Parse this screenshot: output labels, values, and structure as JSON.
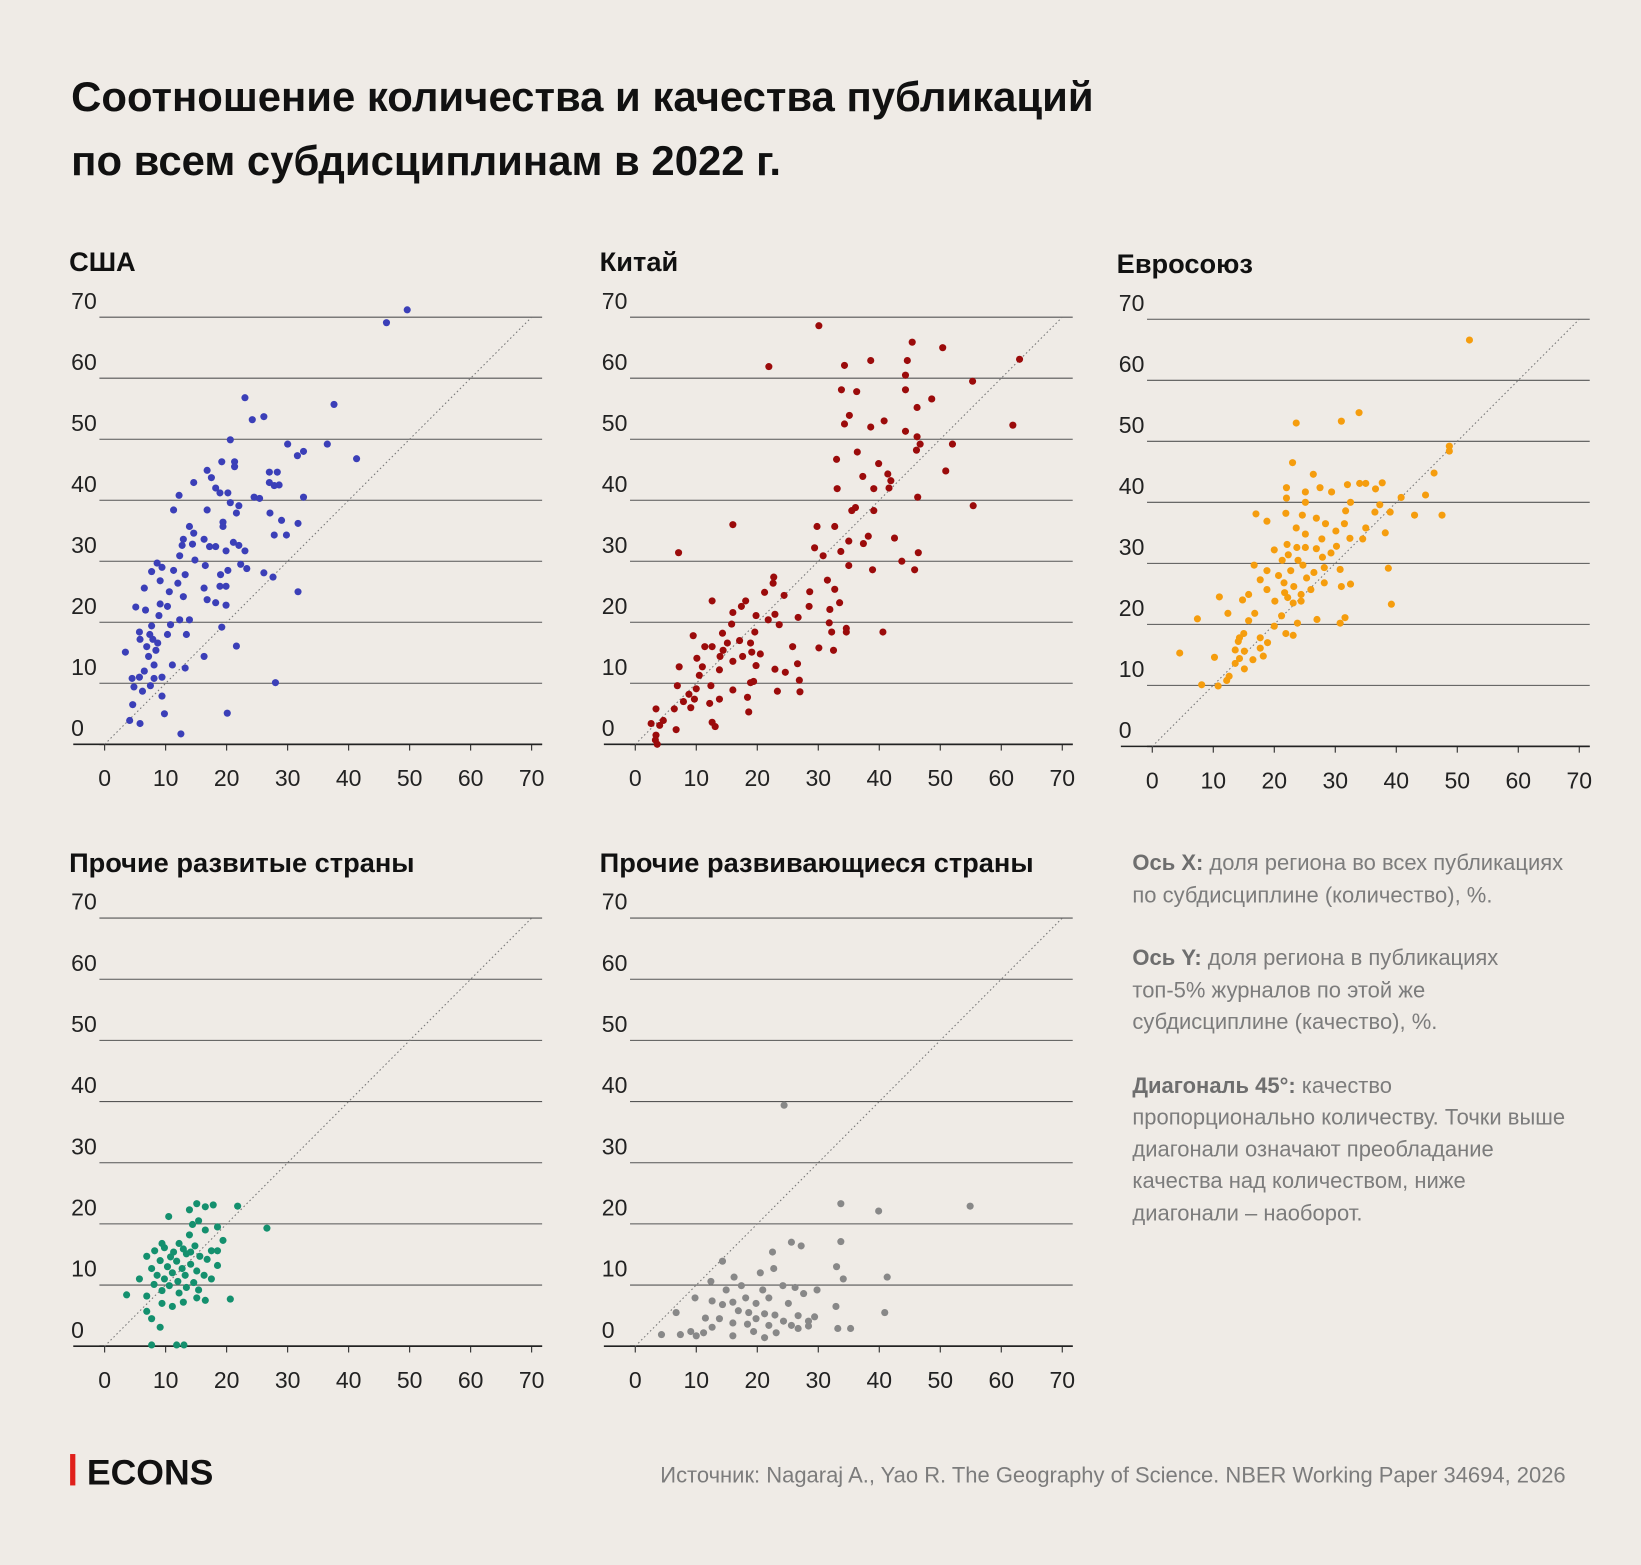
{
  "title": [
    "Соотношение количества и качества публикаций",
    "по всем субдисциплинам в 2022 г."
  ],
  "notes": [
    {
      "label": "Ось X:",
      "text": "доля региона во всех публикациях по субдисциплине (количество), %."
    },
    {
      "label": "Ось Y:",
      "text": "доля региона в публикациях топ-5% журналов по этой же субдисциплине (качество), %."
    },
    {
      "label": "Диагональ 45°:",
      "text": "качество пропорционально количеству. Точки выше диагонали означают преобладание качества над количеством, ниже диагонали – наоборот."
    }
  ],
  "logo": "ECONS",
  "source": "Источник: Nagaraj A., Yao R. The Geography of Science. NBER Working Paper 34694, 2026",
  "chart_data": [
    {
      "type": "scatter",
      "title": "США",
      "color": "#3b3fb8",
      "xlim": [
        0,
        70
      ],
      "ylim": [
        0,
        70
      ],
      "xticks": [
        0,
        10,
        20,
        30,
        40,
        50,
        60,
        70
      ],
      "yticks": [
        0,
        10,
        20,
        30,
        40,
        50,
        60,
        70
      ],
      "x": [
        49.6,
        46.2,
        23,
        37.6,
        26.1,
        24.2,
        20.6,
        30,
        36.5,
        32.6,
        31.6,
        41.3,
        19.2,
        21.3,
        21.3,
        16.8,
        27,
        17.5,
        28.3,
        14.6,
        27,
        28.6,
        27.8,
        18.2,
        12.2,
        18.9,
        20.2,
        24.5,
        32.6,
        25.4,
        20.6,
        22,
        16.8,
        11.3,
        27.1,
        29,
        21.6,
        31.7,
        19.4,
        13.9,
        14.6,
        27.8,
        29.8,
        19.4,
        16.3,
        12.9,
        14.4,
        21.1,
        22,
        12.7,
        17.2,
        18.2,
        19.9,
        12.3,
        23,
        14.8,
        16.5,
        8.6,
        9.4,
        22.3,
        23.3,
        20.2,
        19,
        26.1,
        27.6,
        13.2,
        11.3,
        7.7,
        12,
        9.1,
        16.3,
        18.9,
        19.9,
        31.7,
        6.5,
        10.6,
        12.9,
        16.8,
        18.2,
        19.9,
        9.1,
        10.3,
        5.1,
        6.7,
        8.9,
        12.3,
        13.9,
        10.8,
        7.7,
        19.2,
        5.7,
        7.4,
        10.3,
        13.4,
        5.8,
        7.9,
        8.7,
        6.9,
        8.4,
        16.3,
        3.4,
        7.2,
        21.6,
        8.1,
        11.1,
        13.2,
        6.5,
        5.7,
        9.4,
        4.5,
        8.1,
        28,
        4.8,
        7.5,
        6.2,
        9.4,
        4.6,
        9.8,
        20.1,
        4.1,
        5.8,
        12.5
      ],
      "values": [
        71.2,
        69.1,
        56.8,
        55.7,
        53.7,
        53.2,
        49.9,
        49.2,
        49.2,
        48,
        47.3,
        46.8,
        46.3,
        46.3,
        45.5,
        44.9,
        44.6,
        43.7,
        44.6,
        42.9,
        42.9,
        42.5,
        42.4,
        42,
        40.8,
        41.2,
        41.2,
        40.5,
        40.5,
        40.3,
        39.6,
        39.1,
        38.4,
        38.4,
        37.9,
        36.7,
        37.9,
        36.2,
        36.4,
        35.7,
        34.6,
        34.3,
        34.3,
        35.7,
        33.6,
        33.6,
        32.8,
        33.1,
        32.6,
        32.6,
        32.4,
        32.4,
        31.7,
        30.9,
        31.7,
        30.2,
        29.3,
        29.7,
        29,
        29.5,
        28.8,
        28.5,
        27.8,
        28.1,
        27.4,
        27.8,
        28.5,
        28.3,
        26.4,
        26.8,
        25.6,
        25.9,
        25.9,
        25,
        25.6,
        25,
        24.2,
        23.7,
        23.2,
        22.8,
        23,
        22.6,
        22.5,
        22,
        21.1,
        20.4,
        20.4,
        19.6,
        19.4,
        19.2,
        18.4,
        18,
        18,
        18,
        17.2,
        17.2,
        16.6,
        16,
        15.4,
        14.4,
        15.1,
        14.4,
        16.1,
        13,
        13,
        12.5,
        12,
        11,
        11,
        10.8,
        10.8,
        10.1,
        9.4,
        9.6,
        8.7,
        7.9,
        6.5,
        5,
        5.1,
        3.9,
        3.4,
        1.7
      ]
    },
    {
      "type": "scatter",
      "title": "Китай",
      "color": "#9b0b0b",
      "xlim": [
        0,
        70
      ],
      "ylim": [
        0,
        70
      ],
      "xticks": [
        0,
        10,
        20,
        30,
        40,
        50,
        60,
        70
      ],
      "yticks": [
        0,
        10,
        20,
        30,
        40,
        50,
        60,
        70
      ],
      "x": [
        30.1,
        45.4,
        50.4,
        63,
        21.9,
        38.6,
        34.3,
        44.6,
        44.3,
        55.3,
        33.8,
        36.3,
        44.3,
        48.6,
        46.2,
        35.1,
        40.8,
        61.9,
        38.6,
        44.3,
        34.3,
        46.2,
        46.7,
        52,
        46.1,
        36.4,
        33,
        39.9,
        50.9,
        41.4,
        41.9,
        37.3,
        33.1,
        39.1,
        41.6,
        46.3,
        55.4,
        36.1,
        35.5,
        39.1,
        16,
        29.8,
        32.7,
        38.2,
        42.5,
        35,
        37.4,
        7.1,
        29.4,
        33.7,
        46.4,
        30.8,
        43.7,
        35,
        38.9,
        45.8,
        22.7,
        31.5,
        22.6,
        32.7,
        28.6,
        21.2,
        12.6,
        18.1,
        24.4,
        33.5,
        17.4,
        28.5,
        31.9,
        16,
        22.9,
        19.8,
        26.7,
        21.8,
        15.8,
        31.8,
        23.6,
        34.6,
        32.2,
        34.6,
        40.6,
        19.6,
        14.3,
        9.5,
        17.1,
        18.9,
        11.4,
        12.6,
        15.1,
        25.8,
        14.4,
        13.9,
        30.1,
        32.5,
        19.1,
        10.1,
        17.6,
        20.5,
        16,
        26.6,
        19.8,
        11,
        22.9,
        7.2,
        24.6,
        13.8,
        10.5,
        19.4,
        18.9,
        26.9,
        6.9,
        12.4,
        10,
        16,
        23.3,
        27,
        8.8,
        9.7,
        13.8,
        18.4,
        7.9,
        12.2,
        9.1,
        18.6,
        6.4,
        3.4,
        12.6,
        13.1,
        4.6,
        4,
        2.6,
        6.7,
        3.4,
        3.3,
        3.6
      ],
      "values": [
        68.6,
        65.9,
        65,
        63.1,
        61.9,
        62.9,
        62.1,
        62.9,
        60.5,
        59.5,
        58.1,
        57.8,
        58.1,
        56.6,
        55.2,
        53.9,
        53,
        52.3,
        52,
        51.3,
        52.5,
        50.4,
        49.2,
        49.2,
        48.2,
        47.9,
        46.7,
        46,
        44.8,
        44.3,
        43.2,
        43.9,
        41.9,
        41.9,
        42,
        40.5,
        39.1,
        38.8,
        38.3,
        38.3,
        36,
        35.7,
        35.7,
        34.1,
        33.8,
        33.3,
        32.9,
        31.4,
        32.2,
        31.6,
        31.4,
        30.9,
        30,
        29.3,
        28.6,
        28.6,
        27.4,
        26.9,
        26.4,
        25.4,
        25,
        24.9,
        23.5,
        23.5,
        24.4,
        23.2,
        22.6,
        22.6,
        22.1,
        21.6,
        21.3,
        21.1,
        20.8,
        20.4,
        19.7,
        19.9,
        19.6,
        19,
        18.4,
        18.4,
        18.4,
        18.4,
        18.2,
        17.8,
        17,
        16.6,
        16,
        16,
        16.6,
        16,
        15.4,
        14.4,
        15.8,
        15.4,
        15.1,
        14.1,
        14.4,
        14.8,
        13.6,
        13.2,
        12.9,
        12.7,
        12.3,
        12.7,
        11.8,
        12.2,
        11.3,
        10.3,
        10.1,
        10.5,
        9.6,
        9.6,
        9.1,
        8.9,
        8.7,
        8.6,
        8.2,
        7.4,
        7.4,
        7.7,
        7,
        6.7,
        6,
        5.3,
        5.8,
        5.8,
        3.6,
        2.9,
        3.9,
        3.1,
        3.4,
        2.4,
        1.5,
        0.7,
        0
      ]
    },
    {
      "type": "scatter",
      "title": "Евросоюз",
      "color": "#f59d0e",
      "xlim": [
        0,
        70
      ],
      "ylim": [
        0,
        70
      ],
      "xticks": [
        0,
        10,
        20,
        30,
        40,
        50,
        60,
        70
      ],
      "yticks": [
        0,
        10,
        20,
        30,
        40,
        50,
        60,
        70
      ],
      "x": [
        52,
        48.7,
        48.7,
        33.9,
        31,
        23.6,
        46.2,
        23,
        26.4,
        44.8,
        37.7,
        35,
        32,
        34,
        40.8,
        22,
        27.5,
        29.4,
        25.1,
        36.6,
        22,
        37.3,
        36.5,
        39,
        25.1,
        32.5,
        31.7,
        21.9,
        17,
        43,
        24.6,
        47.5,
        26.9,
        28.4,
        18.8,
        31.5,
        23.6,
        35,
        38.2,
        30.1,
        25.1,
        32.4,
        34.5,
        27.8,
        22.1,
        23.7,
        25.1,
        26.9,
        30.2,
        20,
        22.3,
        29.3,
        27.9,
        23.9,
        21.3,
        24.7,
        16.7,
        38.7,
        28.2,
        30.8,
        18.8,
        22.7,
        26.5,
        20.7,
        25.3,
        17.7,
        21.6,
        28.2,
        32.5,
        23.2,
        31,
        26,
        18.8,
        21.7,
        24.4,
        22.2,
        15.8,
        11,
        20.1,
        39.2,
        24.4,
        23.1,
        14.8,
        12.4,
        16.8,
        21.2,
        7.4,
        27,
        31.6,
        30.8,
        23.8,
        15.8,
        20,
        15,
        21.9,
        23.1,
        14.3,
        17.7,
        14.1,
        18.9,
        17.7,
        13.6,
        4.5,
        15.1,
        18.2,
        10.2,
        14.3,
        16.5,
        13.6,
        15.1,
        12.6,
        12.2,
        8.1,
        10.8
      ],
      "values": [
        66.6,
        49.2,
        48.4,
        54.7,
        53.3,
        53,
        44.8,
        46.5,
        44.6,
        41.2,
        43.2,
        43.1,
        42.9,
        43.1,
        40.8,
        42.4,
        42.4,
        41.7,
        41.7,
        42.2,
        40.7,
        39.6,
        38.4,
        38.4,
        40,
        40,
        38.6,
        38.2,
        38.1,
        37.9,
        37.9,
        37.9,
        37.4,
        36.5,
        36.9,
        36.5,
        35.8,
        35.8,
        35,
        35.3,
        34.8,
        34.1,
        34,
        34,
        33.1,
        32.6,
        32.6,
        32.4,
        32.8,
        32.2,
        31.4,
        31.7,
        31,
        30.5,
        30.5,
        29.7,
        29.7,
        29.2,
        29.3,
        29,
        28.8,
        28.8,
        28.5,
        28,
        27.6,
        27.3,
        26.8,
        26.8,
        26.6,
        26.2,
        26.2,
        25.7,
        25.7,
        25.2,
        24.9,
        24.4,
        24.9,
        24.5,
        23.8,
        23.3,
        23.8,
        23.5,
        24,
        21.8,
        21.8,
        21.4,
        20.9,
        20.8,
        21.1,
        20.2,
        20.2,
        20.6,
        19.7,
        18.5,
        18.5,
        18.2,
        17.8,
        17.8,
        17.2,
        17,
        16.1,
        15.8,
        15.3,
        15.6,
        14.8,
        14.6,
        14.4,
        14.2,
        13.6,
        12.7,
        11.5,
        10.8,
        10.1,
        9.9
      ]
    },
    {
      "type": "scatter",
      "title": "Прочие развитые страны",
      "color": "#14906e",
      "xlim": [
        0,
        70
      ],
      "ylim": [
        0,
        70
      ],
      "xticks": [
        0,
        10,
        20,
        30,
        40,
        50,
        60,
        70
      ],
      "yticks": [
        0,
        10,
        20,
        30,
        40,
        50,
        60,
        70
      ],
      "x": [
        26.6,
        21.8,
        15.1,
        16.5,
        17.8,
        10.5,
        13.9,
        14.4,
        18.5,
        15.4,
        13.9,
        16.5,
        19.4,
        18.5,
        17.5,
        12.2,
        14.8,
        9.8,
        8.2,
        11.3,
        13.4,
        15.6,
        16.8,
        6.9,
        9.1,
        11.8,
        14.1,
        18.5,
        10.3,
        12.7,
        15.1,
        7.7,
        11.1,
        8.6,
        13.2,
        16.3,
        5.7,
        9.8,
        12,
        14.6,
        17.5,
        8.1,
        10.6,
        13.4,
        15.4,
        9.4,
        12.2,
        3.6,
        6.9,
        15.1,
        16.5,
        20.6,
        12.9,
        9.4,
        11.1,
        6.9,
        7.7,
        9.1,
        7.7,
        11.8,
        13,
        9.4,
        12.9,
        10.8,
        14.1
      ],
      "values": [
        19.3,
        22.9,
        23.3,
        22.8,
        23.1,
        21.2,
        22.3,
        19.9,
        19.5,
        20.5,
        18.2,
        19,
        17.3,
        15.6,
        15.6,
        16.8,
        16.4,
        16.1,
        15.6,
        15.4,
        15.1,
        14.7,
        14.2,
        14.7,
        14,
        13.9,
        13.4,
        13.2,
        13,
        12.7,
        12.3,
        12.7,
        12,
        11.6,
        11.6,
        11.6,
        11,
        11,
        10.6,
        10.4,
        11,
        10.1,
        9.9,
        9.6,
        9.2,
        9.1,
        8.7,
        8.4,
        8.2,
        7.9,
        7.5,
        7.7,
        7.2,
        7,
        6.5,
        5.7,
        4.5,
        3.1,
        0.2,
        0.2,
        0.2,
        16.8,
        15.9,
        14.6,
        15.4
      ]
    },
    {
      "type": "scatter",
      "title": "Прочие развивающиеся страны",
      "color": "#888888",
      "xlim": [
        0,
        70
      ],
      "ylim": [
        0,
        70
      ],
      "xticks": [
        0,
        10,
        20,
        30,
        40,
        50,
        60,
        70
      ],
      "yticks": [
        0,
        10,
        20,
        30,
        40,
        50,
        60,
        70
      ],
      "x": [
        24.4,
        33.7,
        39.9,
        54.9,
        33.7,
        25.6,
        27.2,
        22.5,
        14.3,
        22.7,
        33,
        41.3,
        20.5,
        16.2,
        12.4,
        34.1,
        24.2,
        26.2,
        29.8,
        27.6,
        14.9,
        9.8,
        18.1,
        21.9,
        12.6,
        14.3,
        16,
        19.8,
        25.1,
        32.9,
        40.9,
        6.7,
        16.9,
        18.6,
        21.2,
        22.9,
        26.7,
        11.5,
        13.8,
        19.8,
        24.3,
        28.4,
        16,
        18.4,
        21.9,
        25.6,
        12.6,
        26.7,
        33.2,
        35.3,
        9.1,
        11.2,
        19.4,
        23.1,
        7.4,
        4.3,
        10,
        16,
        21.2,
        28.4,
        29.4,
        17.4,
        20.9
      ],
      "values": [
        39.4,
        23.3,
        22.1,
        22.9,
        17.1,
        17,
        16.4,
        15.4,
        13.9,
        12.7,
        13,
        11.3,
        12,
        11.3,
        10.6,
        11,
        9.9,
        9.6,
        9.2,
        8.6,
        9.2,
        7.9,
        7.9,
        7.9,
        7.4,
        6.8,
        7.2,
        7,
        7,
        6.5,
        5.5,
        5.5,
        5.8,
        5.5,
        5.3,
        5.1,
        5,
        4.6,
        4.5,
        4.5,
        4.1,
        4.1,
        3.8,
        3.6,
        3.4,
        3.4,
        3.1,
        2.9,
        2.9,
        2.9,
        2.4,
        2.2,
        2.4,
        2.2,
        1.9,
        1.9,
        1.7,
        1.7,
        1.4,
        3.3,
        4.8,
        9.9,
        9.2
      ]
    }
  ]
}
